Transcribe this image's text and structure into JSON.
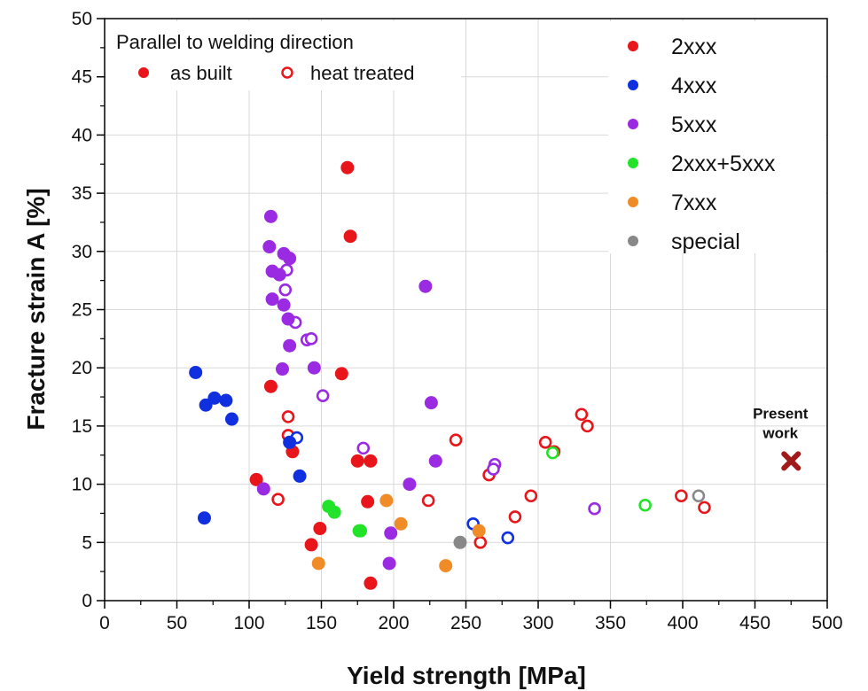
{
  "chart_data": {
    "type": "scatter",
    "xlabel": "Yield strength [MPa]",
    "ylabel": "Fracture strain A [%]",
    "xlim": [
      0,
      500
    ],
    "ylim": [
      0,
      50
    ],
    "xticks": [
      0,
      50,
      100,
      150,
      200,
      250,
      300,
      350,
      400,
      450,
      500
    ],
    "yticks": [
      0,
      5,
      10,
      15,
      20,
      25,
      30,
      35,
      40,
      45,
      50
    ],
    "grid": true,
    "legend_position": "top-right",
    "inset_legend": {
      "title": "Parallel to welding direction",
      "filled_label": "as built",
      "open_label": "heat treated",
      "color": "#e8161b"
    },
    "annotation": {
      "line1": "Present",
      "line2": "work",
      "x": 475,
      "y": 12,
      "color": "#a11a1a"
    },
    "series": [
      {
        "name": "2xxx",
        "color": "#e8161b",
        "as_built": [
          [
            168,
            37.2
          ],
          [
            170,
            31.3
          ],
          [
            115,
            18.4
          ],
          [
            164,
            19.5
          ],
          [
            130,
            12.8
          ],
          [
            175,
            12
          ],
          [
            184,
            12
          ],
          [
            105,
            10.4
          ],
          [
            182,
            8.5
          ],
          [
            149,
            6.2
          ],
          [
            143,
            4.8
          ],
          [
            184,
            1.5
          ]
        ],
        "heat_treated": [
          [
            127,
            15.8
          ],
          [
            127,
            14.2
          ],
          [
            243,
            13.8
          ],
          [
            330,
            16
          ],
          [
            334,
            15
          ],
          [
            305,
            13.6
          ],
          [
            311,
            12.8
          ],
          [
            266,
            10.8
          ],
          [
            295,
            9
          ],
          [
            224,
            8.6
          ],
          [
            120,
            8.7
          ],
          [
            284,
            7.2
          ],
          [
            260,
            5
          ],
          [
            399,
            9
          ],
          [
            415,
            8
          ]
        ]
      },
      {
        "name": "4xxx",
        "color": "#1030e0",
        "as_built": [
          [
            63,
            19.6
          ],
          [
            76,
            17.4
          ],
          [
            84,
            17.2
          ],
          [
            70,
            16.8
          ],
          [
            88,
            15.6
          ],
          [
            128,
            13.6
          ],
          [
            135,
            10.7
          ],
          [
            69,
            7.1
          ]
        ],
        "heat_treated": [
          [
            133,
            14
          ],
          [
            255,
            6.6
          ],
          [
            279,
            5.4
          ]
        ]
      },
      {
        "name": "5xxx",
        "color": "#9a2be2",
        "as_built": [
          [
            115,
            33
          ],
          [
            114,
            30.4
          ],
          [
            124,
            29.8
          ],
          [
            128,
            29.4
          ],
          [
            116,
            28.3
          ],
          [
            121,
            28
          ],
          [
            116,
            25.9
          ],
          [
            124,
            25.4
          ],
          [
            127,
            24.2
          ],
          [
            128,
            21.9
          ],
          [
            123,
            19.9
          ],
          [
            145,
            20
          ],
          [
            222,
            27
          ],
          [
            226,
            17
          ],
          [
            229,
            12
          ],
          [
            211,
            10
          ],
          [
            110,
            9.6
          ],
          [
            198,
            5.8
          ],
          [
            197,
            3.2
          ]
        ],
        "heat_treated": [
          [
            126,
            28.4
          ],
          [
            125,
            26.7
          ],
          [
            132,
            23.9
          ],
          [
            140,
            22.4
          ],
          [
            143,
            22.5
          ],
          [
            151,
            17.6
          ],
          [
            179,
            13.1
          ],
          [
            270,
            11.7
          ],
          [
            269,
            11.3
          ],
          [
            339,
            7.9
          ]
        ]
      },
      {
        "name": "2xxx+5xxx",
        "color": "#22e22a",
        "as_built": [
          [
            155,
            8.1
          ],
          [
            159,
            7.6
          ],
          [
            177,
            6
          ]
        ],
        "heat_treated": [
          [
            176,
            6
          ],
          [
            310,
            12.7
          ],
          [
            374,
            8.2
          ]
        ]
      },
      {
        "name": "7xxx",
        "color": "#f08c28",
        "as_built": [
          [
            195,
            8.6
          ],
          [
            205,
            6.6
          ],
          [
            148,
            3.2
          ],
          [
            236,
            3
          ],
          [
            259,
            6
          ]
        ],
        "heat_treated": []
      },
      {
        "name": "special",
        "color": "#888888",
        "as_built": [
          [
            246,
            5
          ]
        ],
        "heat_treated": [
          [
            411,
            9
          ]
        ]
      }
    ]
  }
}
